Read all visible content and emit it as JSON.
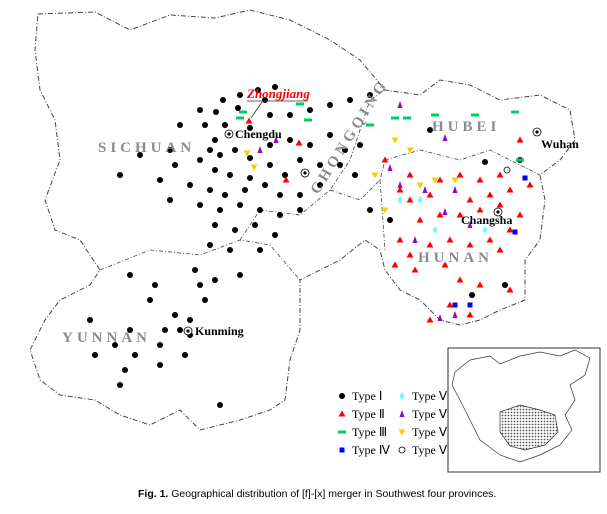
{
  "provinces": {
    "sichuan": "SICHUAN",
    "yunnan": "YUNNAN",
    "hubei": "HUBEI",
    "hunan": "HUNAN",
    "chongqing": "CHONGQING"
  },
  "cities": {
    "chengdu": "Chengdu",
    "wuhan": "Wuhan",
    "changsha": "Changsha",
    "kunming": "Kunming",
    "zhongjiang": "Zhongjiang"
  },
  "legend": [
    {
      "label": "Type Ⅰ",
      "symbol": "circle",
      "color": "#000000"
    },
    {
      "label": "Type Ⅱ",
      "symbol": "triangle-up",
      "color": "#ff0000"
    },
    {
      "label": "Type Ⅲ",
      "symbol": "dash",
      "color": "#00cc66"
    },
    {
      "label": "Type Ⅳ",
      "symbol": "square",
      "color": "#0000ff"
    },
    {
      "label": "Type Ⅴ",
      "symbol": "diamond",
      "color": "#66ffff"
    },
    {
      "label": "Type Ⅵ",
      "symbol": "triangle-up-small",
      "color": "#9900cc"
    },
    {
      "label": "Type Ⅶ",
      "symbol": "triangle-down",
      "color": "#ffcc00"
    },
    {
      "label": "Type Ⅷ",
      "symbol": "open-circle",
      "color": "#000000"
    }
  ],
  "highlight_color": "#ff0000",
  "caption": {
    "label": "Fig. 1.",
    "text": "Geographical distribution of [f]-[x] merger in Southwest four provinces."
  }
}
